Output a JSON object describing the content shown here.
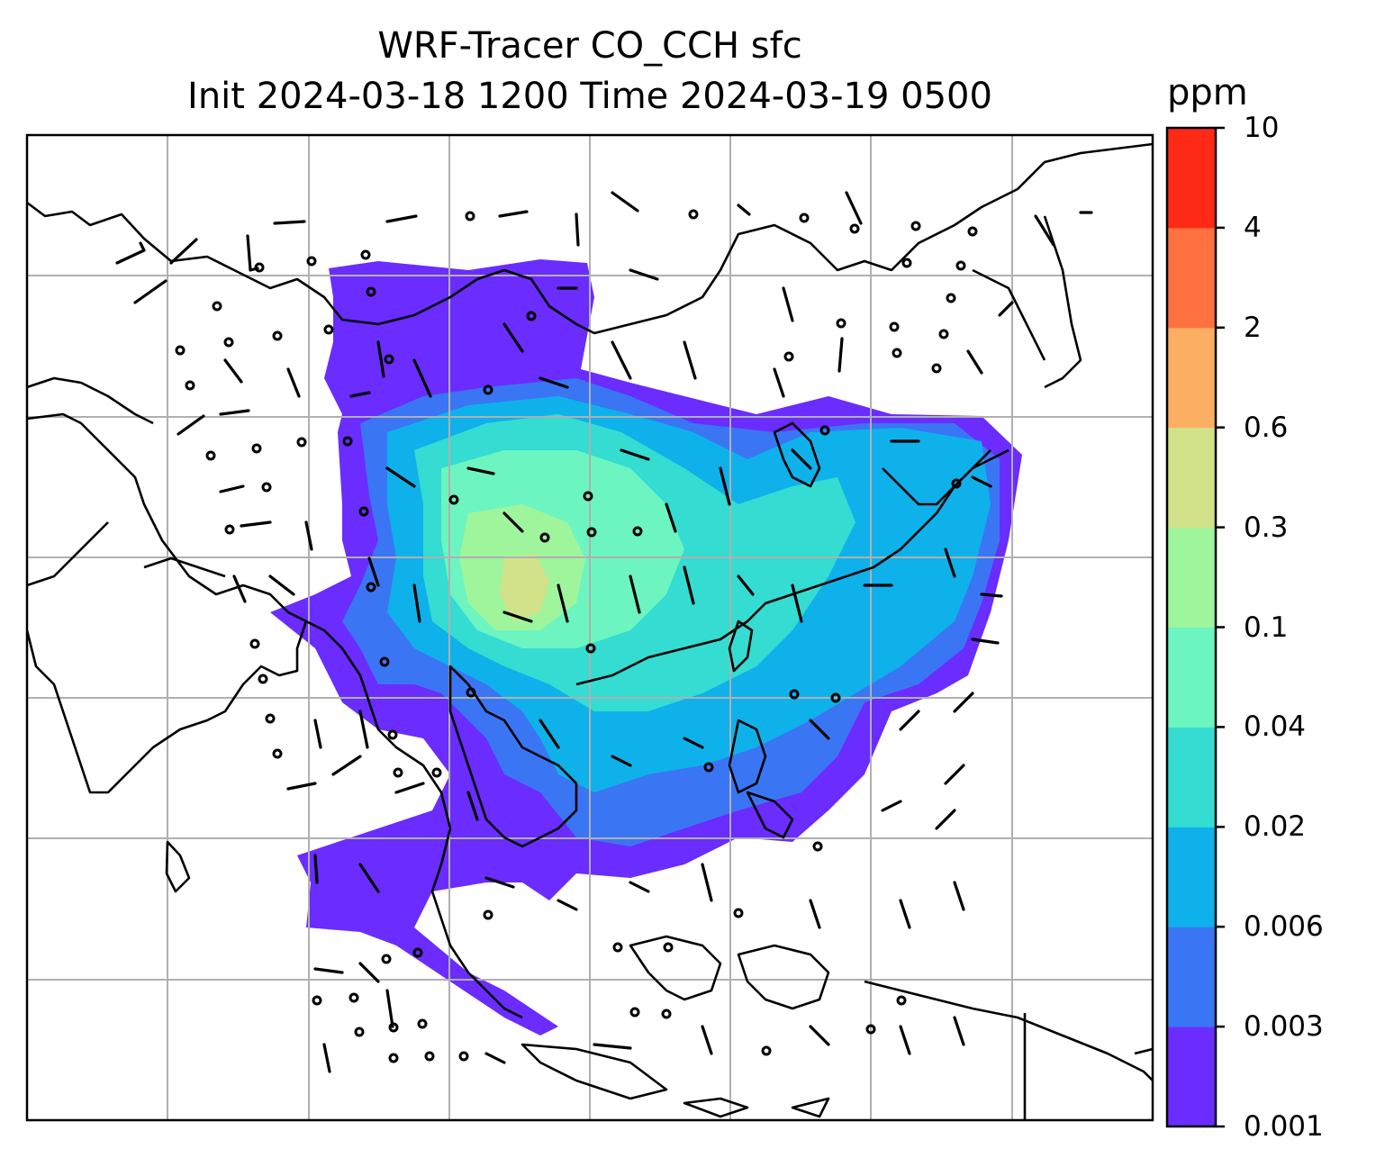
{
  "title": {
    "line1": "WRF-Tracer CO_CCH sfc",
    "line2": "Init 2024-03-18 1200 Time 2024-03-19 0500"
  },
  "colorbar": {
    "unit": "ppm",
    "levels": [
      {
        "label": "0.001",
        "color": "#6a2cff"
      },
      {
        "label": "0.003",
        "color": "#3a76f4"
      },
      {
        "label": "0.006",
        "color": "#0fb1ea"
      },
      {
        "label": "0.02",
        "color": "#34dcd2"
      },
      {
        "label": "0.04",
        "color": "#6cf5c0"
      },
      {
        "label": "0.1",
        "color": "#9ef59c"
      },
      {
        "label": "0.3",
        "color": "#d2e28a"
      },
      {
        "label": "0.6",
        "color": "#fcaf62"
      },
      {
        "label": "2",
        "color": "#ff7140"
      },
      {
        "label": "4",
        "color": "#ff2a16"
      },
      {
        "label": "10",
        "color": ""
      }
    ]
  },
  "map": {
    "gridlines": true,
    "field": "CO_CCH tracer concentration at surface",
    "overlay": "wind barbs"
  }
}
